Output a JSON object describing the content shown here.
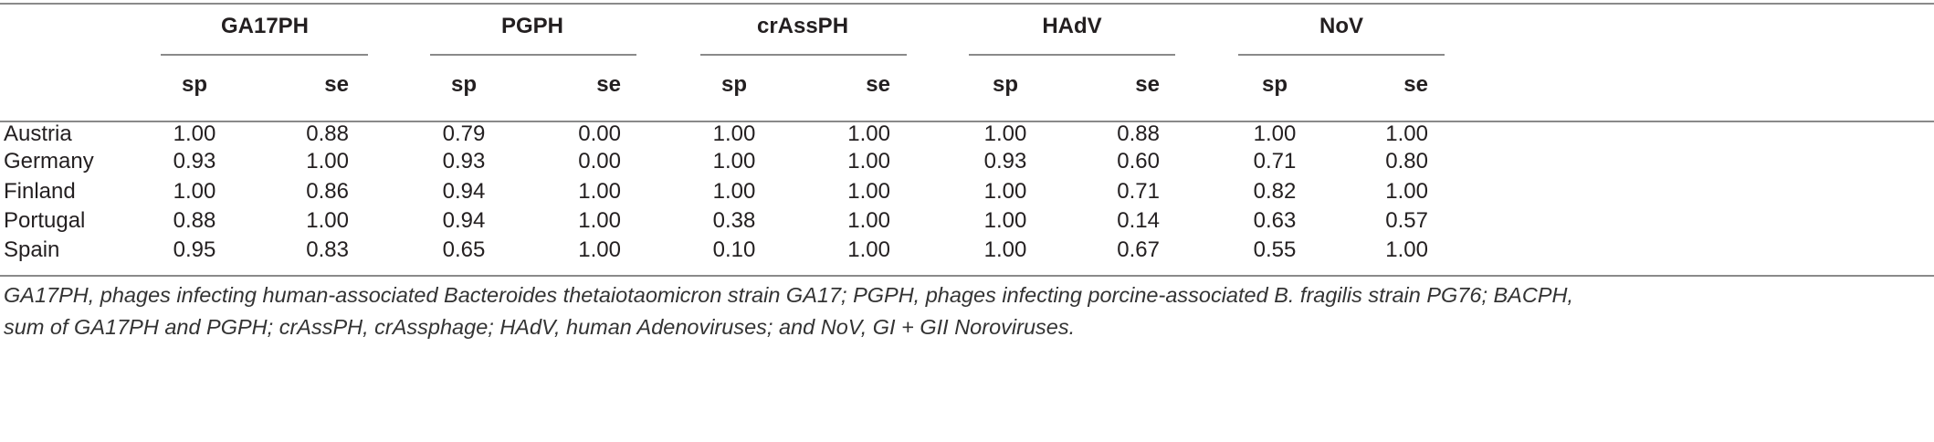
{
  "table": {
    "groups": [
      "GA17PH",
      "PGPH",
      "crAssPH",
      "HAdV",
      "NoV"
    ],
    "subheaders": [
      "sp",
      "se"
    ],
    "rows": [
      {
        "country": "Austria",
        "values": [
          "1.00",
          "0.88",
          "0.79",
          "0.00",
          "1.00",
          "1.00",
          "1.00",
          "0.88",
          "1.00",
          "1.00"
        ]
      },
      {
        "country": "Germany",
        "values": [
          "0.93",
          "1.00",
          "0.93",
          "0.00",
          "1.00",
          "1.00",
          "0.93",
          "0.60",
          "0.71",
          "0.80"
        ]
      },
      {
        "country": "Finland",
        "values": [
          "1.00",
          "0.86",
          "0.94",
          "1.00",
          "1.00",
          "1.00",
          "1.00",
          "0.71",
          "0.82",
          "1.00"
        ]
      },
      {
        "country": "Portugal",
        "values": [
          "0.88",
          "1.00",
          "0.94",
          "1.00",
          "0.38",
          "1.00",
          "1.00",
          "0.14",
          "0.63",
          "0.57"
        ]
      },
      {
        "country": "Spain",
        "values": [
          "0.95",
          "0.83",
          "0.65",
          "1.00",
          "0.10",
          "1.00",
          "1.00",
          "0.67",
          "0.55",
          "1.00"
        ]
      }
    ]
  },
  "footnote": {
    "line1": "GA17PH, phages infecting human-associated Bacteroides thetaiotaomicron strain GA17; PGPH, phages infecting porcine-associated B. fragilis strain PG76; BACPH,",
    "line2": "sum of GA17PH and PGPH; crAssPH, crAssphage; HAdV, human Adenoviruses; and NoV, GI + GII Noroviruses."
  }
}
